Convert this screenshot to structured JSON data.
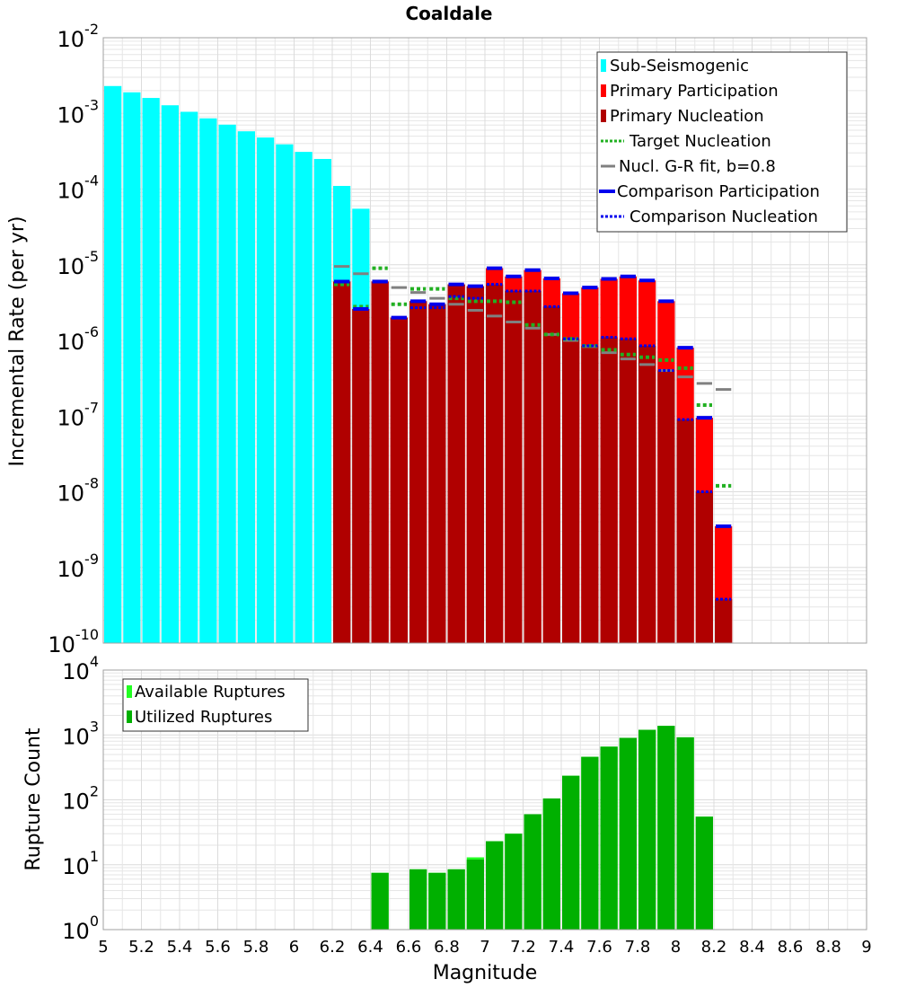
{
  "title": "Coaldale",
  "colors": {
    "sub_seismogenic": "#00ffff",
    "primary_participation": "#ff0000",
    "primary_nucleation": "#b00000",
    "target_nucleation": "#22b022",
    "gr_fit": "#808080",
    "comparison": "#0000ee",
    "available": "#22ff22",
    "utilized": "#00b000",
    "grid": "#e6e6e6",
    "frame": "#a0a0a0"
  },
  "chart_data": [
    {
      "type": "bar",
      "id": "rate-chart",
      "ylabel": "Incremental Rate (per yr)",
      "yscale": "log",
      "ylim": [
        1e-10,
        0.01
      ],
      "xlim": [
        5,
        9
      ],
      "ytick_labels": [
        {
          "base": "10",
          "exp": "-10"
        },
        {
          "base": "10",
          "exp": "-9"
        },
        {
          "base": "10",
          "exp": "-8"
        },
        {
          "base": "10",
          "exp": "-7"
        },
        {
          "base": "10",
          "exp": "-6"
        },
        {
          "base": "10",
          "exp": "-5"
        },
        {
          "base": "10",
          "exp": "-4"
        },
        {
          "base": "10",
          "exp": "-3"
        },
        {
          "base": "10",
          "exp": "-2"
        }
      ],
      "bin_width": 0.1,
      "sub_seismogenic": {
        "x": [
          5.05,
          5.15,
          5.25,
          5.35,
          5.45,
          5.55,
          5.65,
          5.75,
          5.85,
          5.95,
          6.05,
          6.15,
          6.25,
          6.35
        ],
        "values": [
          0.0023,
          0.0019,
          0.0016,
          0.00128,
          0.00105,
          0.00086,
          0.00071,
          0.00058,
          0.00048,
          0.00039,
          0.00031,
          0.00025,
          0.00011,
          5.5e-05
        ]
      },
      "primary_participation": {
        "x": [
          6.25,
          6.35,
          6.45,
          6.55,
          6.65,
          6.75,
          6.85,
          6.95,
          7.05,
          7.15,
          7.25,
          7.35,
          7.45,
          7.55,
          7.65,
          7.75,
          7.85,
          7.95,
          8.05,
          8.15,
          8.25
        ],
        "values": [
          6e-06,
          2.6e-06,
          6e-06,
          2e-06,
          3.3e-06,
          3e-06,
          5.5e-06,
          5.2e-06,
          9e-06,
          7e-06,
          8.5e-06,
          6.6e-06,
          4.2e-06,
          5e-06,
          6.5e-06,
          7e-06,
          6.2e-06,
          3.3e-06,
          8e-07,
          9.5e-08,
          3.5e-09
        ]
      },
      "primary_nucleation": {
        "x": [
          6.25,
          6.35,
          6.45,
          6.55,
          6.65,
          6.75,
          6.85,
          6.95,
          7.05,
          7.15,
          7.25,
          7.35,
          7.45,
          7.55,
          7.65,
          7.75,
          7.85,
          7.95,
          8.05,
          8.15,
          8.25
        ],
        "values": [
          6e-06,
          2.6e-06,
          6e-06,
          2e-06,
          3.3e-06,
          3e-06,
          5.5e-06,
          5.2e-06,
          5.5e-06,
          4.5e-06,
          4.5e-06,
          2.8e-06,
          1.05e-06,
          8.5e-07,
          1.1e-06,
          1.05e-06,
          8.5e-07,
          4e-07,
          9e-08,
          1e-08,
          3.8e-10
        ]
      },
      "target_nucleation": {
        "x": [
          6.25,
          6.35,
          6.45,
          6.55,
          6.65,
          6.75,
          6.85,
          6.95,
          7.05,
          7.15,
          7.25,
          7.35,
          7.45,
          7.55,
          7.65,
          7.75,
          7.85,
          7.95,
          8.05,
          8.15,
          8.25
        ],
        "values": [
          5.5e-06,
          2.8e-06,
          9e-06,
          3e-06,
          4.8e-06,
          4.8e-06,
          3.6e-06,
          3.3e-06,
          3.3e-06,
          3.2e-06,
          1.6e-06,
          1.2e-06,
          1.05e-06,
          8.5e-07,
          7.5e-07,
          6.5e-07,
          6e-07,
          5.5e-07,
          4.3e-07,
          1.4e-07,
          1.2e-08
        ]
      },
      "gr_fit": {
        "x": [
          6.25,
          6.35,
          6.45,
          6.55,
          6.65,
          6.75,
          6.85,
          6.95,
          7.05,
          7.15,
          7.25,
          7.35,
          7.45,
          7.55,
          7.65,
          7.75,
          7.85,
          7.95,
          8.05,
          8.15,
          8.25
        ],
        "values": [
          9.5e-06,
          7.6e-06,
          6.1e-06,
          5e-06,
          4.3e-06,
          3.6e-06,
          3e-06,
          2.5e-06,
          2.1e-06,
          1.75e-06,
          1.45e-06,
          1.2e-06,
          1e-06,
          8.3e-07,
          6.9e-07,
          5.7e-07,
          4.8e-07,
          4e-07,
          3.3e-07,
          2.7e-07,
          2.25e-07
        ]
      },
      "comparison_participation": {
        "x": [
          6.25,
          6.35,
          6.45,
          6.55,
          6.65,
          6.75,
          6.85,
          6.95,
          7.05,
          7.15,
          7.25,
          7.35,
          7.45,
          7.55,
          7.65,
          7.75,
          7.85,
          7.95,
          8.05,
          8.15,
          8.25
        ],
        "values": [
          6e-06,
          2.6e-06,
          6e-06,
          2e-06,
          3.3e-06,
          3e-06,
          5.5e-06,
          5.2e-06,
          9e-06,
          7e-06,
          8.5e-06,
          6.6e-06,
          4.2e-06,
          5e-06,
          6.5e-06,
          7e-06,
          6.2e-06,
          3.3e-06,
          8e-07,
          9.5e-08,
          3.5e-09
        ]
      },
      "comparison_nucleation": {
        "x": [
          6.25,
          6.35,
          6.45,
          6.55,
          6.65,
          6.75,
          6.85,
          6.95,
          7.05,
          7.15,
          7.25,
          7.35,
          7.45,
          7.55,
          7.65,
          7.75,
          7.85,
          7.95,
          8.05,
          8.15,
          8.25
        ],
        "values": [
          6e-06,
          2.6e-06,
          6e-06,
          2e-06,
          2.7e-06,
          2.7e-06,
          3.8e-06,
          3.6e-06,
          5.5e-06,
          4.5e-06,
          4.5e-06,
          2.8e-06,
          1.05e-06,
          8.5e-07,
          1.1e-06,
          1.05e-06,
          8.5e-07,
          4e-07,
          9e-08,
          1e-08,
          3.8e-10
        ]
      },
      "legend": {
        "position": "top-right",
        "entries": [
          {
            "label": "Sub-Seismogenic",
            "key": "sub_seismogenic",
            "style": "box"
          },
          {
            "label": "Primary Participation",
            "key": "primary_participation",
            "style": "box"
          },
          {
            "label": "Primary Nucleation",
            "key": "primary_nucleation",
            "style": "box"
          },
          {
            "label": "Target Nucleation",
            "key": "target_nucleation",
            "style": "dotted"
          },
          {
            "label": "Nucl. G-R fit, b=0.8",
            "key": "gr_fit",
            "style": "solid"
          },
          {
            "label": "Comparison Participation",
            "key": "comparison",
            "style": "solid-thick"
          },
          {
            "label": "Comparison Nucleation",
            "key": "comparison",
            "style": "dotted"
          }
        ]
      }
    },
    {
      "type": "bar",
      "id": "count-chart",
      "xlabel": "Magnitude",
      "ylabel": "Rupture Count",
      "yscale": "log",
      "ylim": [
        1,
        10000
      ],
      "xlim": [
        5,
        9
      ],
      "ytick_labels": [
        {
          "base": "10",
          "exp": "0"
        },
        {
          "base": "10",
          "exp": "1"
        },
        {
          "base": "10",
          "exp": "2"
        },
        {
          "base": "10",
          "exp": "3"
        },
        {
          "base": "10",
          "exp": "4"
        }
      ],
      "xtick_labels": [
        "5",
        "5.2",
        "5.4",
        "5.6",
        "5.8",
        "6",
        "6.2",
        "6.4",
        "6.6",
        "6.8",
        "7",
        "7.2",
        "7.4",
        "7.6",
        "7.8",
        "8",
        "8.2",
        "8.4",
        "8.6",
        "8.8",
        "9"
      ],
      "bin_width": 0.1,
      "available": {
        "x": [
          6.45,
          6.65,
          6.75,
          6.85,
          6.95,
          7.05,
          7.15,
          7.25,
          7.35,
          7.45,
          7.55,
          7.65,
          7.75,
          7.85,
          7.95,
          8.05,
          8.15
        ],
        "values": [
          7.5,
          8.5,
          7.5,
          8.5,
          13,
          23,
          30,
          60,
          105,
          235,
          460,
          660,
          900,
          1200,
          1380,
          920,
          55
        ]
      },
      "utilized": {
        "x": [
          6.45,
          6.65,
          6.75,
          6.85,
          6.95,
          7.05,
          7.15,
          7.25,
          7.35,
          7.45,
          7.55,
          7.65,
          7.75,
          7.85,
          7.95,
          8.05,
          8.15
        ],
        "values": [
          7.5,
          8.5,
          7.5,
          8.5,
          12,
          23,
          30,
          60,
          105,
          235,
          460,
          660,
          900,
          1200,
          1380,
          920,
          55
        ]
      },
      "legend": {
        "position": "top-left",
        "entries": [
          {
            "label": "Available Ruptures",
            "key": "available",
            "style": "box"
          },
          {
            "label": "Utilized Ruptures",
            "key": "utilized",
            "style": "box"
          }
        ]
      }
    }
  ]
}
